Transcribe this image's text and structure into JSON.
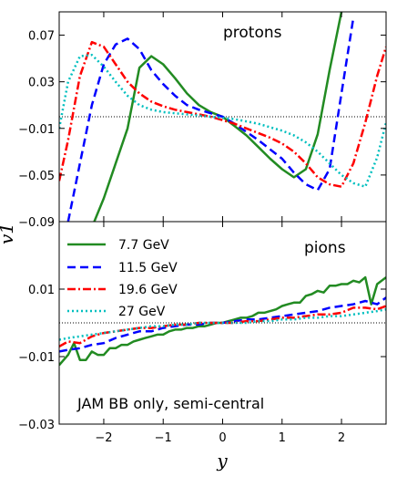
{
  "chart_data": {
    "type": "line",
    "xlabel": "y",
    "ylabel": "v1",
    "xlim": [
      -2.75,
      2.75
    ],
    "x_ticks": [
      "−2",
      "−1",
      "0",
      "1",
      "2"
    ],
    "note": "JAM BB only, semi-central",
    "legend": {
      "placement": "top-left of lower panel",
      "entries": [
        "7.7 GeV",
        "11.5 GeV",
        "19.6 GeV",
        "27 GeV"
      ]
    },
    "panels": [
      {
        "label": "protons",
        "ylim": [
          -0.09,
          0.09
        ],
        "y_ticks": [
          "0.07",
          "0.03",
          "−0.01",
          "−0.05",
          "−0.09"
        ],
        "reference_line": 0,
        "series": [
          {
            "name": "7.7 GeV",
            "color": "#228b22",
            "style": "solid",
            "x": [
              -2.2,
              -2.0,
              -1.6,
              -1.4,
              -1.2,
              -1.0,
              -0.8,
              -0.6,
              -0.4,
              -0.2,
              0.0,
              0.2,
              0.4,
              0.6,
              0.8,
              1.0,
              1.2,
              1.4,
              1.6,
              1.8,
              2.0
            ],
            "y": [
              -0.095,
              -0.07,
              -0.01,
              0.042,
              0.052,
              0.045,
              0.033,
              0.02,
              0.01,
              0.004,
              0.0,
              -0.008,
              -0.016,
              -0.026,
              -0.036,
              -0.045,
              -0.052,
              -0.045,
              -0.015,
              0.04,
              0.09
            ]
          },
          {
            "name": "11.5 GeV",
            "color": "#0000ff",
            "style": "dashed",
            "x": [
              -2.6,
              -2.4,
              -2.2,
              -2.0,
              -1.8,
              -1.6,
              -1.4,
              -1.2,
              -1.0,
              -0.8,
              -0.6,
              -0.4,
              -0.2,
              0.0,
              0.2,
              0.4,
              0.6,
              0.8,
              1.0,
              1.2,
              1.4,
              1.6,
              1.8,
              2.0,
              2.2
            ],
            "y": [
              -0.09,
              -0.04,
              0.01,
              0.045,
              0.062,
              0.067,
              0.058,
              0.04,
              0.028,
              0.018,
              0.01,
              0.006,
              0.003,
              0.0,
              -0.006,
              -0.013,
              -0.02,
              -0.028,
              -0.036,
              -0.048,
              -0.058,
              -0.063,
              -0.045,
              0.02,
              0.085
            ]
          },
          {
            "name": "19.6 GeV",
            "color": "#ff0000",
            "style": "dashdot",
            "x": [
              -2.75,
              -2.6,
              -2.4,
              -2.2,
              -2.0,
              -1.8,
              -1.6,
              -1.4,
              -1.2,
              -1.0,
              -0.8,
              -0.6,
              -0.4,
              -0.2,
              0.0,
              0.2,
              0.4,
              0.6,
              0.8,
              1.0,
              1.2,
              1.4,
              1.6,
              1.8,
              2.0,
              2.2,
              2.4,
              2.6,
              2.75
            ],
            "y": [
              -0.055,
              -0.02,
              0.035,
              0.064,
              0.06,
              0.045,
              0.03,
              0.02,
              0.013,
              0.009,
              0.006,
              0.004,
              0.002,
              0.0,
              -0.003,
              -0.006,
              -0.01,
              -0.014,
              -0.018,
              -0.023,
              -0.03,
              -0.04,
              -0.052,
              -0.058,
              -0.06,
              -0.04,
              -0.005,
              0.035,
              0.06
            ]
          },
          {
            "name": "27 GeV",
            "color": "#00bfbf",
            "style": "dotted",
            "x": [
              -2.75,
              -2.6,
              -2.4,
              -2.2,
              -2.0,
              -1.8,
              -1.6,
              -1.4,
              -1.2,
              -1.0,
              -0.8,
              -0.6,
              -0.4,
              -0.2,
              0.0,
              0.2,
              0.4,
              0.6,
              0.8,
              1.0,
              1.2,
              1.4,
              1.6,
              1.8,
              2.0,
              2.2,
              2.4,
              2.6,
              2.75
            ],
            "y": [
              -0.01,
              0.03,
              0.052,
              0.053,
              0.043,
              0.03,
              0.018,
              0.01,
              0.006,
              0.004,
              0.003,
              0.002,
              0.001,
              0.0,
              -0.001,
              -0.002,
              -0.004,
              -0.006,
              -0.009,
              -0.012,
              -0.016,
              -0.022,
              -0.03,
              -0.04,
              -0.05,
              -0.057,
              -0.06,
              -0.035,
              -0.005
            ]
          }
        ]
      },
      {
        "label": "pions",
        "ylim": [
          -0.03,
          0.03
        ],
        "y_ticks": [
          "0.01",
          "−0.01",
          "−0.03"
        ],
        "reference_line": 0,
        "series": [
          {
            "name": "7.7 GeV",
            "color": "#228b22",
            "style": "solid",
            "x": [
              -2.75,
              -2.6,
              -2.5,
              -2.4,
              -2.3,
              -2.2,
              -2.1,
              -2.0,
              -1.9,
              -1.8,
              -1.7,
              -1.6,
              -1.5,
              -1.4,
              -1.3,
              -1.2,
              -1.1,
              -1.0,
              -0.9,
              -0.8,
              -0.7,
              -0.6,
              -0.5,
              -0.4,
              -0.3,
              -0.2,
              -0.1,
              0.0,
              0.1,
              0.2,
              0.3,
              0.4,
              0.5,
              0.6,
              0.7,
              0.8,
              0.9,
              1.0,
              1.1,
              1.2,
              1.3,
              1.4,
              1.5,
              1.6,
              1.7,
              1.8,
              1.9,
              2.0,
              2.1,
              2.2,
              2.3,
              2.4,
              2.5,
              2.6,
              2.75
            ],
            "y": [
              -0.0125,
              -0.0095,
              -0.006,
              -0.011,
              -0.011,
              -0.0085,
              -0.0095,
              -0.0095,
              -0.0075,
              -0.0075,
              -0.0065,
              -0.0065,
              -0.0055,
              -0.005,
              -0.0045,
              -0.004,
              -0.0035,
              -0.0035,
              -0.0025,
              -0.002,
              -0.002,
              -0.0015,
              -0.0015,
              -0.001,
              -0.001,
              -0.0005,
              0.0,
              0.0,
              0.0005,
              0.001,
              0.0015,
              0.0015,
              0.002,
              0.003,
              0.003,
              0.0035,
              0.004,
              0.005,
              0.0055,
              0.006,
              0.006,
              0.008,
              0.0085,
              0.0095,
              0.009,
              0.011,
              0.011,
              0.0115,
              0.0115,
              0.0125,
              0.012,
              0.0135,
              0.0055,
              0.0115,
              0.0135
            ]
          },
          {
            "name": "11.5 GeV",
            "color": "#0000ff",
            "style": "dashed",
            "x": [
              -2.75,
              -2.6,
              -2.4,
              -2.2,
              -2.0,
              -1.8,
              -1.6,
              -1.4,
              -1.2,
              -1.0,
              -0.8,
              -0.6,
              -0.4,
              -0.2,
              0.0,
              0.2,
              0.4,
              0.6,
              0.8,
              1.0,
              1.2,
              1.4,
              1.6,
              1.8,
              2.0,
              2.2,
              2.4,
              2.6,
              2.75
            ],
            "y": [
              -0.0085,
              -0.008,
              -0.0075,
              -0.0065,
              -0.006,
              -0.0045,
              -0.0035,
              -0.0025,
              -0.0025,
              -0.0015,
              -0.001,
              -0.0005,
              -0.0005,
              0.0,
              0.0,
              0.0005,
              0.001,
              0.001,
              0.0015,
              0.002,
              0.0025,
              0.003,
              0.0035,
              0.0045,
              0.005,
              0.0055,
              0.0065,
              0.0055,
              0.0075
            ]
          },
          {
            "name": "19.6 GeV",
            "color": "#ff0000",
            "style": "dashdot",
            "x": [
              -2.75,
              -2.6,
              -2.4,
              -2.2,
              -2.0,
              -1.8,
              -1.6,
              -1.4,
              -1.2,
              -1.0,
              -0.8,
              -0.6,
              -0.4,
              -0.2,
              0.0,
              0.2,
              0.4,
              0.6,
              0.8,
              1.0,
              1.2,
              1.4,
              1.6,
              1.8,
              2.0,
              2.2,
              2.4,
              2.6,
              2.75
            ],
            "y": [
              -0.007,
              -0.0055,
              -0.006,
              -0.004,
              -0.003,
              -0.0025,
              -0.002,
              -0.0015,
              -0.0015,
              -0.001,
              -0.0005,
              -0.0005,
              0.0,
              0.0,
              0.0,
              0.0,
              0.0005,
              0.0005,
              0.001,
              0.0015,
              0.0015,
              0.002,
              0.0025,
              0.0025,
              0.003,
              0.0045,
              0.0045,
              0.004,
              0.005
            ]
          },
          {
            "name": "27 GeV",
            "color": "#00bfbf",
            "style": "dotted",
            "x": [
              -2.75,
              -2.6,
              -2.4,
              -2.2,
              -2.0,
              -1.8,
              -1.6,
              -1.4,
              -1.2,
              -1.0,
              -0.8,
              -0.6,
              -0.4,
              -0.2,
              0.0,
              0.2,
              0.4,
              0.6,
              0.8,
              1.0,
              1.2,
              1.4,
              1.6,
              1.8,
              2.0,
              2.2,
              2.4,
              2.6,
              2.75
            ],
            "y": [
              -0.005,
              -0.0045,
              -0.004,
              -0.0035,
              -0.003,
              -0.0025,
              -0.002,
              -0.0015,
              -0.001,
              -0.001,
              -0.0005,
              -0.0005,
              0.0,
              0.0,
              0.0,
              0.0,
              0.0,
              0.0005,
              0.0005,
              0.001,
              0.001,
              0.0015,
              0.0015,
              0.002,
              0.002,
              0.0025,
              0.003,
              0.0035,
              0.004
            ]
          }
        ]
      }
    ]
  }
}
